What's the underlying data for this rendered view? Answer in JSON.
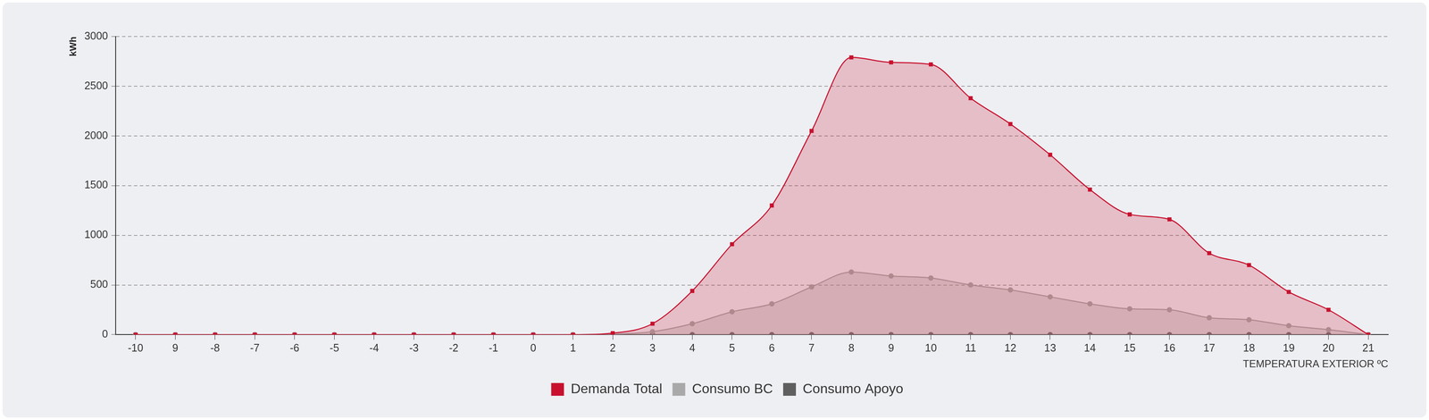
{
  "chart_data": {
    "type": "area",
    "y_label": "kWh",
    "x_label": "TEMPERATURA EXTERIOR ºC",
    "categories": [
      "-10",
      "9",
      "-8",
      "-7",
      "-6",
      "-5",
      "-4",
      "-3",
      "-2",
      "-1",
      "0",
      "1",
      "2",
      "3",
      "4",
      "5",
      "6",
      "7",
      "8",
      "9",
      "10",
      "11",
      "12",
      "13",
      "14",
      "15",
      "16",
      "17",
      "18",
      "19",
      "20",
      "21"
    ],
    "series": [
      {
        "name": "Demanda Total",
        "color": "#c8102e",
        "marker": "square",
        "values": [
          0,
          0,
          0,
          0,
          0,
          0,
          0,
          0,
          0,
          0,
          0,
          0,
          15,
          110,
          440,
          910,
          1300,
          2050,
          2790,
          2740,
          2720,
          2380,
          2120,
          1810,
          1460,
          1210,
          1160,
          820,
          700,
          430,
          250,
          0
        ]
      },
      {
        "name": "Consumo BC",
        "color": "#a9a9a9",
        "marker": "circle",
        "values": [
          0,
          0,
          0,
          0,
          0,
          0,
          0,
          0,
          0,
          0,
          0,
          0,
          5,
          30,
          110,
          230,
          310,
          480,
          630,
          590,
          570,
          500,
          450,
          380,
          310,
          260,
          250,
          170,
          150,
          90,
          50,
          0
        ]
      },
      {
        "name": "Consumo Apoyo",
        "color": "#5f5f5f",
        "marker": "circle",
        "values": [
          0,
          0,
          0,
          0,
          0,
          0,
          0,
          0,
          0,
          0,
          0,
          0,
          0,
          0,
          0,
          0,
          0,
          0,
          0,
          0,
          0,
          0,
          0,
          0,
          0,
          0,
          0,
          0,
          0,
          0,
          0,
          0
        ]
      }
    ],
    "ylim": [
      0,
      3000
    ],
    "yticks": [
      0,
      500,
      1000,
      1500,
      2000,
      2500,
      3000
    ],
    "grid": true,
    "legend": "bottom"
  }
}
